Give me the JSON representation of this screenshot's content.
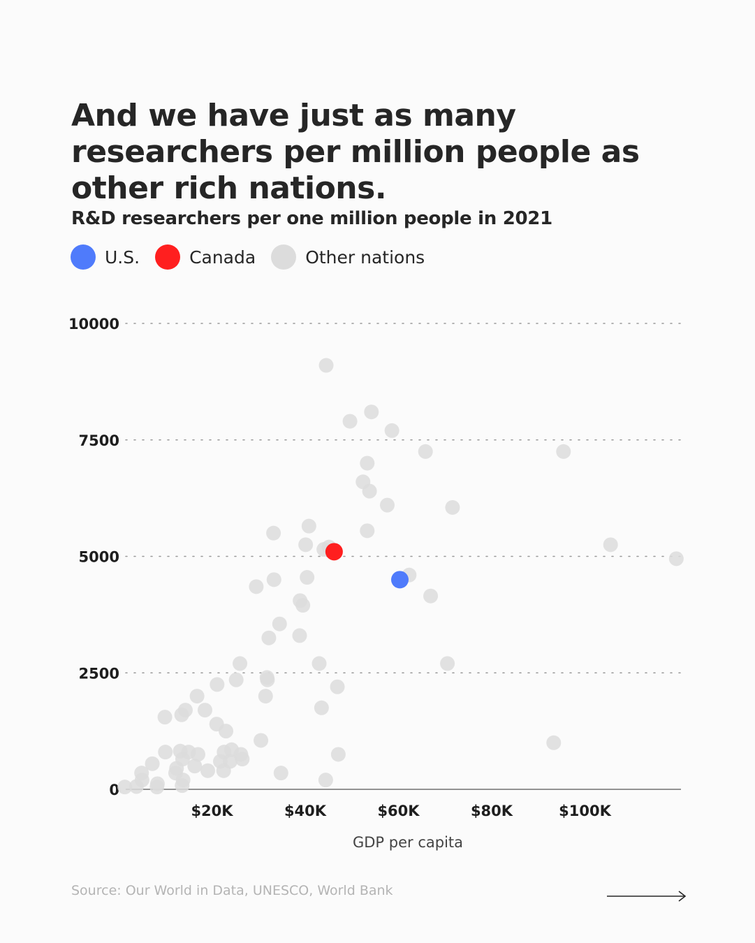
{
  "headline": "And we have just as many researchers per million people as other rich nations.",
  "source": "Source: Our World in Data, UNESCO, World Bank",
  "legend": [
    {
      "label": "U.S.",
      "color": "#4f7bfb"
    },
    {
      "label": "Canada",
      "color": "#ff1f1f"
    },
    {
      "label": "Other nations",
      "color": "#dcdcdc"
    }
  ],
  "chart_data": {
    "type": "scatter",
    "title": "R&D researchers per one million people in 2021",
    "xlabel": "GDP per capita",
    "ylabel": "",
    "xlim": [
      0,
      120000
    ],
    "ylim": [
      0,
      10000
    ],
    "x_ticks": [
      {
        "value": 20000,
        "label": "$20K"
      },
      {
        "value": 40000,
        "label": "$40K"
      },
      {
        "value": 60000,
        "label": "$60K"
      },
      {
        "value": 80000,
        "label": "$80K"
      },
      {
        "value": 100000,
        "label": "$100K"
      }
    ],
    "y_ticks": [
      {
        "value": 0,
        "label": "0",
        "grid": false
      },
      {
        "value": 2500,
        "label": "2500",
        "grid": true
      },
      {
        "value": 5000,
        "label": "5000",
        "grid": true
      },
      {
        "value": 7500,
        "label": "7500",
        "grid": true
      },
      {
        "value": 10000,
        "label": "10000",
        "grid": true
      }
    ],
    "series": [
      {
        "name": "Other nations",
        "color": "#dcdcdc",
        "points": [
          [
            1300,
            50
          ],
          [
            3800,
            60
          ],
          [
            5000,
            200
          ],
          [
            4900,
            350
          ],
          [
            7200,
            550
          ],
          [
            8300,
            120
          ],
          [
            8200,
            50
          ],
          [
            12200,
            350
          ],
          [
            12400,
            450
          ],
          [
            13700,
            650
          ],
          [
            13200,
            820
          ],
          [
            15000,
            800
          ],
          [
            10000,
            800
          ],
          [
            9900,
            1550
          ],
          [
            13800,
            200
          ],
          [
            13600,
            80
          ],
          [
            17000,
            750
          ],
          [
            16300,
            500
          ],
          [
            18500,
            1700
          ],
          [
            16800,
            2000
          ],
          [
            14300,
            1700
          ],
          [
            13500,
            1600
          ],
          [
            19100,
            400
          ],
          [
            21000,
            1400
          ],
          [
            21100,
            2250
          ],
          [
            23000,
            1250
          ],
          [
            21800,
            600
          ],
          [
            22600,
            800
          ],
          [
            22500,
            400
          ],
          [
            23900,
            600
          ],
          [
            24200,
            850
          ],
          [
            25200,
            2350
          ],
          [
            26200,
            750
          ],
          [
            26500,
            650
          ],
          [
            26000,
            2700
          ],
          [
            29500,
            4350
          ],
          [
            30500,
            1050
          ],
          [
            31500,
            2000
          ],
          [
            31800,
            2400
          ],
          [
            31900,
            2350
          ],
          [
            32200,
            3250
          ],
          [
            33300,
            4500
          ],
          [
            33200,
            5500
          ],
          [
            34500,
            3550
          ],
          [
            34800,
            350
          ],
          [
            38800,
            3300
          ],
          [
            38900,
            4050
          ],
          [
            39500,
            3950
          ],
          [
            40100,
            5250
          ],
          [
            40400,
            4550
          ],
          [
            40800,
            5650
          ],
          [
            43000,
            2700
          ],
          [
            43500,
            1750
          ],
          [
            44000,
            5150
          ],
          [
            45100,
            5200
          ],
          [
            44500,
            9100
          ],
          [
            44400,
            200
          ],
          [
            46900,
            2200
          ],
          [
            47100,
            750
          ],
          [
            49600,
            7900
          ],
          [
            52400,
            6600
          ],
          [
            53300,
            7000
          ],
          [
            53300,
            5550
          ],
          [
            53800,
            6400
          ],
          [
            54200,
            8100
          ],
          [
            57600,
            6100
          ],
          [
            58600,
            7700
          ],
          [
            62300,
            4600
          ],
          [
            65800,
            7250
          ],
          [
            66900,
            4150
          ],
          [
            70500,
            2700
          ],
          [
            71600,
            6050
          ],
          [
            93300,
            1000
          ],
          [
            95400,
            7250
          ],
          [
            105500,
            5250
          ],
          [
            119600,
            4950
          ]
        ]
      },
      {
        "name": "Canada",
        "color": "#ff1f1f",
        "points": [
          [
            46200,
            5100
          ]
        ]
      },
      {
        "name": "U.S.",
        "color": "#4f7bfb",
        "points": [
          [
            60300,
            4500
          ]
        ]
      }
    ]
  }
}
